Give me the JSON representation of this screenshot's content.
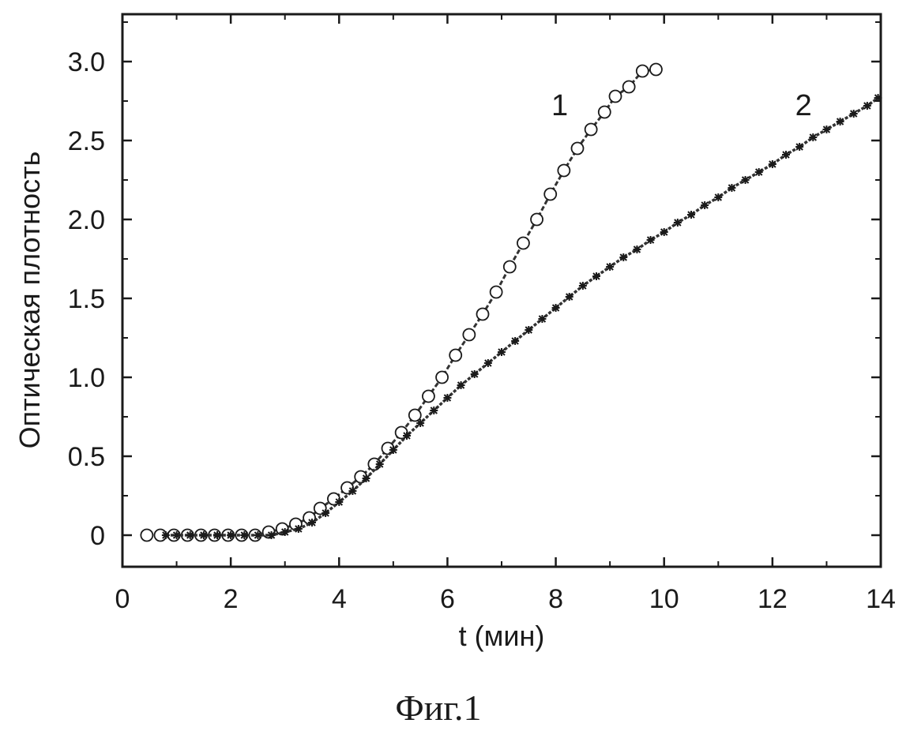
{
  "chart_data": {
    "type": "scatter",
    "title": "",
    "xlabel": "t (мин)",
    "ylabel": "Оптическая плотность",
    "xlim": [
      0,
      14
    ],
    "ylim": [
      -0.2,
      3.3
    ],
    "x_ticks": [
      "0",
      "2",
      "4",
      "6",
      "8",
      "10",
      "12",
      "14"
    ],
    "y_ticks": [
      "0",
      "0.5",
      "1.0",
      "1.5",
      "2.0",
      "2.5",
      "3.0"
    ],
    "x_tick_values": [
      0,
      2,
      4,
      6,
      8,
      10,
      12,
      14
    ],
    "y_tick_values": [
      0,
      0.5,
      1.0,
      1.5,
      2.0,
      2.5,
      3.0
    ],
    "grid": false,
    "series": [
      {
        "name": "1",
        "marker": "open-circle",
        "label_at": [
          8.0,
          2.73
        ],
        "x": [
          0.45,
          0.7,
          0.95,
          1.2,
          1.45,
          1.7,
          1.95,
          2.2,
          2.45,
          2.7,
          2.95,
          3.2,
          3.45,
          3.65,
          3.9,
          4.15,
          4.4,
          4.65,
          4.9,
          5.15,
          5.4,
          5.65,
          5.9,
          6.15,
          6.4,
          6.65,
          6.9,
          7.15,
          7.4,
          7.65,
          7.9,
          8.15,
          8.4,
          8.65,
          8.9,
          9.1,
          9.35,
          9.6,
          9.85
        ],
        "y": [
          0.0,
          0.0,
          0.0,
          0.0,
          0.0,
          0.0,
          0.0,
          0.0,
          0.0,
          0.02,
          0.04,
          0.07,
          0.11,
          0.17,
          0.23,
          0.3,
          0.37,
          0.45,
          0.55,
          0.65,
          0.76,
          0.88,
          1.0,
          1.14,
          1.27,
          1.4,
          1.54,
          1.7,
          1.85,
          2.0,
          2.16,
          2.31,
          2.45,
          2.57,
          2.68,
          2.78,
          2.84,
          2.94,
          2.95
        ]
      },
      {
        "name": "2",
        "marker": "star",
        "label_at": [
          12.5,
          2.73
        ],
        "x": [
          0.8,
          1.0,
          1.25,
          1.5,
          1.75,
          2.0,
          2.25,
          2.5,
          2.75,
          3.0,
          3.25,
          3.5,
          3.75,
          4.0,
          4.25,
          4.5,
          4.75,
          5.0,
          5.25,
          5.5,
          5.75,
          6.0,
          6.25,
          6.5,
          6.75,
          7.0,
          7.25,
          7.5,
          7.75,
          8.0,
          8.25,
          8.5,
          8.75,
          9.0,
          9.25,
          9.5,
          9.75,
          10.0,
          10.25,
          10.5,
          10.75,
          11.0,
          11.25,
          11.5,
          11.75,
          12.0,
          12.25,
          12.5,
          12.75,
          13.0,
          13.25,
          13.5,
          13.75,
          13.95
        ],
        "y": [
          0.0,
          0.0,
          0.0,
          0.0,
          0.0,
          0.0,
          0.0,
          0.0,
          0.0,
          0.02,
          0.04,
          0.08,
          0.14,
          0.21,
          0.28,
          0.36,
          0.45,
          0.54,
          0.63,
          0.71,
          0.79,
          0.87,
          0.95,
          1.02,
          1.09,
          1.16,
          1.23,
          1.3,
          1.37,
          1.44,
          1.51,
          1.58,
          1.64,
          1.7,
          1.76,
          1.81,
          1.87,
          1.92,
          1.98,
          2.03,
          2.09,
          2.14,
          2.2,
          2.25,
          2.3,
          2.35,
          2.41,
          2.46,
          2.52,
          2.57,
          2.62,
          2.67,
          2.72,
          2.77
        ]
      }
    ]
  },
  "caption": "Фиг.1"
}
